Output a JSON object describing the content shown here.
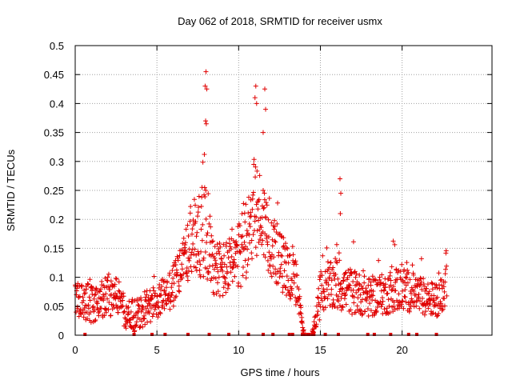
{
  "chart_data": {
    "type": "scatter",
    "title": "Day 062 of 2018, SRMTID for receiver usmx",
    "xlabel": "GPS time / hours",
    "ylabel": "SRMTID / TECUs",
    "xlim": [
      0,
      25.5
    ],
    "ylim": [
      0,
      0.5
    ],
    "xticks": [
      0,
      5,
      10,
      15,
      20
    ],
    "xtick_labels": [
      "0",
      "5",
      "10",
      "15",
      "20"
    ],
    "yticks": [
      0,
      0.05,
      0.1,
      0.15,
      0.2,
      0.25,
      0.3,
      0.35,
      0.4,
      0.45,
      0.5
    ],
    "ytick_labels": [
      "0",
      "0.05",
      "0.1",
      "0.15",
      "0.2",
      "0.25",
      "0.3",
      "0.35",
      "0.4",
      "0.45",
      "0.5"
    ],
    "grid": true,
    "marker": "plus",
    "color": "#e00000",
    "series": [
      {
        "name": "SRMTID",
        "envelope_hours": [
          0,
          0.5,
          1,
          1.5,
          2,
          2.5,
          3,
          3.5,
          4,
          4.5,
          5,
          5.5,
          6,
          6.5,
          7,
          7.5,
          8,
          8.5,
          9,
          9.5,
          10,
          10.5,
          11,
          11.5,
          12,
          12.5,
          13,
          13.5,
          14,
          14.5,
          15,
          15.5,
          16,
          16.5,
          17,
          17.5,
          18,
          18.5,
          19,
          19.5,
          20,
          20.5,
          21,
          21.5,
          22,
          22.5,
          22.75
        ],
        "envelope_base": [
          0.065,
          0.055,
          0.06,
          0.06,
          0.065,
          0.075,
          0.04,
          0.035,
          0.04,
          0.05,
          0.06,
          0.07,
          0.085,
          0.12,
          0.15,
          0.17,
          0.18,
          0.12,
          0.11,
          0.12,
          0.13,
          0.18,
          0.22,
          0.2,
          0.16,
          0.13,
          0.11,
          0.09,
          0.0,
          0.0,
          0.07,
          0.08,
          0.09,
          0.08,
          0.075,
          0.07,
          0.065,
          0.07,
          0.07,
          0.08,
          0.08,
          0.075,
          0.07,
          0.065,
          0.06,
          0.07,
          0.11
        ],
        "envelope_spread": [
          0.03,
          0.03,
          0.04,
          0.03,
          0.04,
          0.03,
          0.03,
          0.03,
          0.03,
          0.03,
          0.03,
          0.03,
          0.04,
          0.05,
          0.06,
          0.07,
          0.08,
          0.05,
          0.05,
          0.05,
          0.06,
          0.08,
          0.09,
          0.07,
          0.06,
          0.05,
          0.05,
          0.04,
          0.0,
          0.0,
          0.04,
          0.04,
          0.05,
          0.04,
          0.04,
          0.035,
          0.035,
          0.035,
          0.035,
          0.04,
          0.04,
          0.035,
          0.035,
          0.03,
          0.03,
          0.03,
          0.05
        ],
        "spikes": [
          {
            "x": 8.0,
            "y": 0.455
          },
          {
            "x": 7.95,
            "y": 0.43
          },
          {
            "x": 8.05,
            "y": 0.425
          },
          {
            "x": 7.98,
            "y": 0.37
          },
          {
            "x": 8.02,
            "y": 0.365
          },
          {
            "x": 11.05,
            "y": 0.43
          },
          {
            "x": 11.0,
            "y": 0.41
          },
          {
            "x": 11.1,
            "y": 0.4
          },
          {
            "x": 11.6,
            "y": 0.425
          },
          {
            "x": 11.65,
            "y": 0.39
          },
          {
            "x": 11.5,
            "y": 0.35
          },
          {
            "x": 16.2,
            "y": 0.27
          },
          {
            "x": 16.25,
            "y": 0.245
          },
          {
            "x": 16.22,
            "y": 0.21
          }
        ],
        "zero_points_hours": [
          0.6,
          3.6,
          4.7,
          5.5,
          6.9,
          8.2,
          9.4,
          10.6,
          11.5,
          12.1,
          13.1,
          13.3,
          13.9,
          14.0,
          14.2,
          14.3,
          14.5,
          14.6,
          15.3,
          16.1,
          17.9,
          18.3,
          19.3,
          20.4,
          20.9,
          22.1
        ]
      }
    ]
  }
}
